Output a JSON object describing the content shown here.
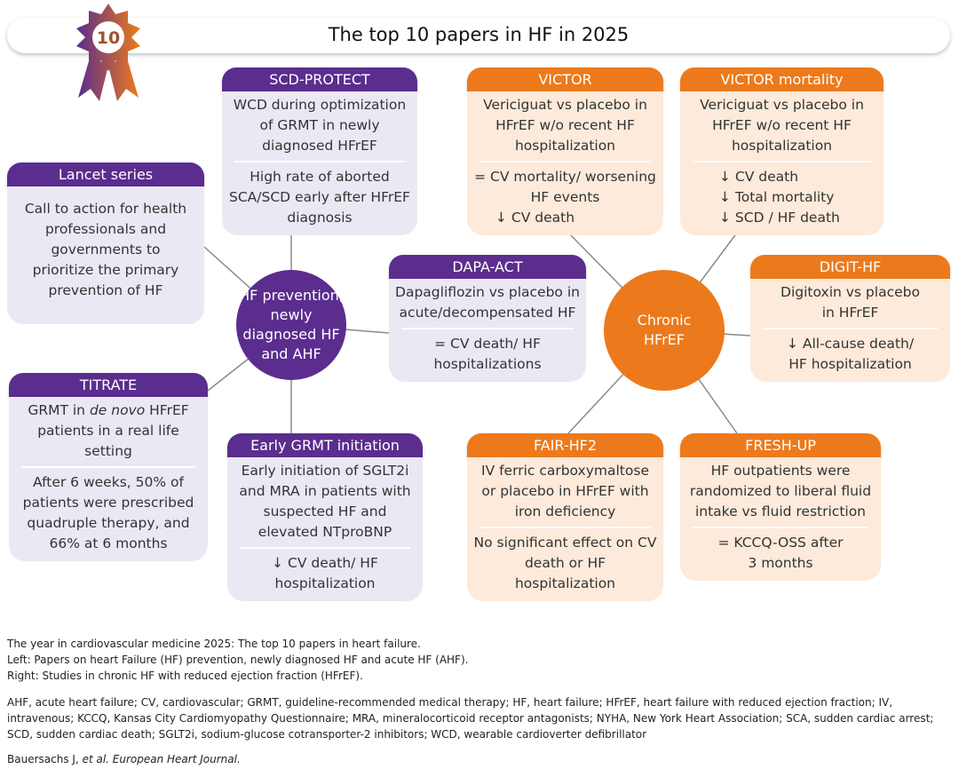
{
  "title": "The top 10 papers in HF in 2025",
  "badge": "10",
  "colors": {
    "purple": "#5b2d8e",
    "purple_bg": "#ece8f3",
    "orange": "#ec7a1c",
    "orange_bg": "#fdeadb"
  },
  "hubs": {
    "left": "HF prevention, newly diagnosed HF and AHF",
    "right": "Chronic HFrEF"
  },
  "boxes": {
    "scd": {
      "title": "SCD-PROTECT",
      "l1": "WCD during optimization of GRMT in newly diagnosed HFrEF",
      "l2": "High rate of aborted SCA/SCD early after HFrEF diagnosis"
    },
    "lancet": {
      "title": "Lancet series",
      "l1": "Call to action for health professionals and governments to prioritize the primary prevention of HF"
    },
    "titrate": {
      "title": "TITRATE",
      "l1a": "GRMT in ",
      "l1b": "de novo",
      "l1c": " HFrEF patients in a real life setting",
      "l2": "After 6 weeks, 50% of patients were prescribed quadruple therapy, and 66% at 6 months"
    },
    "early": {
      "title": "Early GRMT initiation",
      "l1": "Early initiation of SGLT2i and MRA in patients with suspected HF and elevated NTproBNP",
      "l2": "↓ CV death/ HF hospitalization"
    },
    "dapa": {
      "title": "DAPA-ACT",
      "l1": "Dapagliflozin vs placebo in acute/decompensated HF",
      "l2": "= CV death/ HF hospitalizations"
    },
    "victor": {
      "title": "VICTOR",
      "l1": "Vericiguat vs placebo in HFrEF w/o recent HF hospitalization",
      "l2": "= CV mortality/ worsening HF events",
      "l3": "↓ CV death"
    },
    "victorm": {
      "title": "VICTOR mortality",
      "l1": "Vericiguat vs placebo in HFrEF w/o recent HF hospitalization",
      "l2": "↓ CV death",
      "l3": "↓ Total mortality",
      "l4": "↓ SCD / HF death"
    },
    "digit": {
      "title": "DIGIT-HF",
      "l1": "Digitoxin vs placebo in HFrEF",
      "l2": "↓ All-cause death/ HF hospitalization"
    },
    "fair": {
      "title": "FAIR-HF2",
      "l1": "IV ferric carboxymaltose or placebo in HFrEF with iron deficiency",
      "l2": "No significant effect on CV death or HF hospitalization"
    },
    "fresh": {
      "title": "FRESH-UP",
      "l1": "HF outpatients were randomized to liberal fluid intake vs fluid restriction",
      "l2": "= KCCQ-OSS after 3 months"
    }
  },
  "caption": {
    "c1": "The year in cardiovascular medicine 2025: The top 10 papers in heart failure.",
    "c2": "Left: Papers on heart Failure (HF) prevention, newly diagnosed HF and acute HF (AHF).",
    "c3": "Right: Studies in chronic HF with reduced ejection fraction (HFrEF).",
    "abbr": "AHF, acute heart failure; CV, cardiovascular; GRMT, guideline-recommended medical therapy; HF, heart failure; HFrEF, heart failure with reduced ejection fraction; IV, intravenous; KCCQ, Kansas City Cardiomyopathy Questionnaire; MRA, mineralocorticoid receptor antagonists; NYHA, New York Heart Association; SCA, sudden cardiac arrest; SCD, sudden cardiac death; SGLT2i, sodium-glucose cotransporter-2 inhibitors; WCD, wearable cardioverter defibrillator",
    "cite_a": "Bauersachs J, ",
    "cite_b": "et al. European Heart Journal."
  }
}
